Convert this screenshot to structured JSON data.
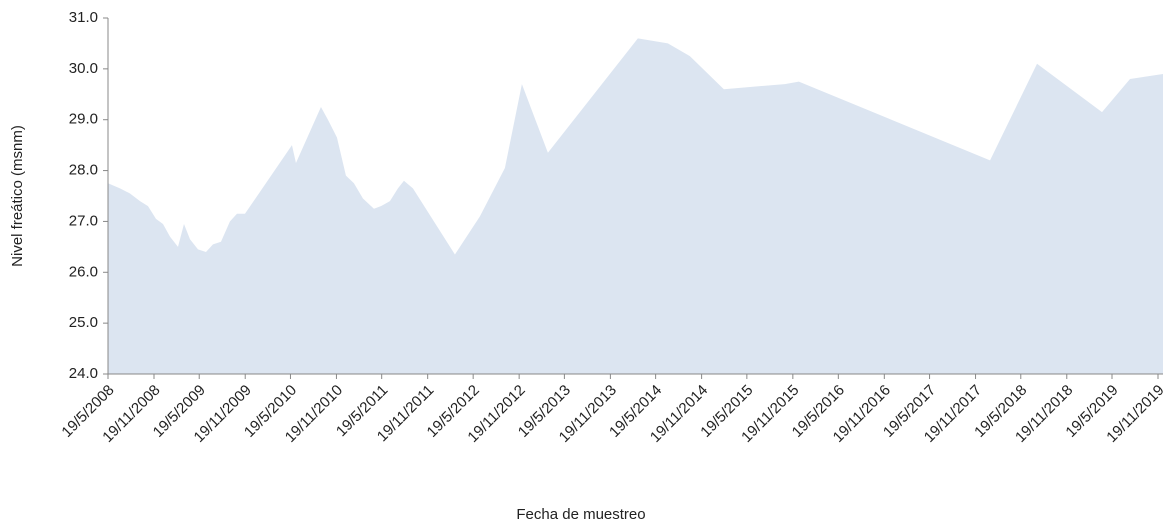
{
  "chart_data": {
    "type": "area",
    "x_label": "Fecha de muestreo",
    "y_label": "Nivel freático (msnm)",
    "color": "#dce5f1",
    "x": [
      "2008-05-19",
      "2008-07-06",
      "2008-08-15",
      "2008-09-24",
      "2008-10-26",
      "2008-11-27",
      "2008-12-25",
      "2009-01-22",
      "2009-02-23",
      "2009-03-19",
      "2009-04-12",
      "2009-05-14",
      "2009-06-15",
      "2009-07-13",
      "2009-08-14",
      "2009-09-19",
      "2009-10-17",
      "2009-11-18",
      "2010-05-25",
      "2010-06-10",
      "2010-09-18",
      "2010-10-16",
      "2010-11-21",
      "2010-12-27",
      "2011-01-28",
      "2011-03-05",
      "2011-04-18",
      "2011-05-16",
      "2011-06-21",
      "2011-07-23",
      "2011-08-16",
      "2011-09-21",
      "2012-03-07",
      "2012-06-15",
      "2012-09-23",
      "2012-11-30",
      "2013-03-14",
      "2014-03-09",
      "2014-07-07",
      "2014-10-03",
      "2015-02-16",
      "2015-10-18",
      "2015-12-13",
      "2018-01-16",
      "2018-07-23",
      "2019-04-09",
      "2019-07-30",
      "2019-12-09"
    ],
    "values": [
      27.75,
      27.65,
      27.55,
      27.4,
      27.3,
      27.05,
      26.95,
      26.7,
      26.5,
      26.95,
      26.65,
      26.45,
      26.4,
      26.55,
      26.6,
      27.0,
      27.15,
      27.15,
      28.5,
      28.15,
      29.25,
      29.0,
      28.65,
      27.9,
      27.75,
      27.45,
      27.25,
      27.3,
      27.4,
      27.65,
      27.8,
      27.65,
      26.35,
      27.1,
      28.05,
      29.7,
      28.35,
      30.6,
      30.5,
      30.25,
      29.6,
      29.7,
      29.75,
      28.2,
      30.1,
      29.15,
      29.8,
      29.9
    ],
    "xlim": [
      "2008-05-19",
      "2019-12-09"
    ],
    "xticks": [
      {
        "value": "2008-05-19",
        "label": "19/5/2008"
      },
      {
        "value": "2008-11-19",
        "label": "19/11/2008"
      },
      {
        "value": "2009-05-19",
        "label": "19/5/2009"
      },
      {
        "value": "2009-11-19",
        "label": "19/11/2009"
      },
      {
        "value": "2010-05-19",
        "label": "19/5/2010"
      },
      {
        "value": "2010-11-19",
        "label": "19/11/2010"
      },
      {
        "value": "2011-05-19",
        "label": "19/5/2011"
      },
      {
        "value": "2011-11-19",
        "label": "19/11/2011"
      },
      {
        "value": "2012-05-19",
        "label": "19/5/2012"
      },
      {
        "value": "2012-11-19",
        "label": "19/11/2012"
      },
      {
        "value": "2013-05-19",
        "label": "19/5/2013"
      },
      {
        "value": "2013-11-19",
        "label": "19/11/2013"
      },
      {
        "value": "2014-05-19",
        "label": "19/5/2014"
      },
      {
        "value": "2014-11-19",
        "label": "19/11/2014"
      },
      {
        "value": "2015-05-19",
        "label": "19/5/2015"
      },
      {
        "value": "2015-11-19",
        "label": "19/11/2015"
      },
      {
        "value": "2016-05-19",
        "label": "19/5/2016"
      },
      {
        "value": "2016-11-19",
        "label": "19/11/2016"
      },
      {
        "value": "2017-05-19",
        "label": "19/5/2017"
      },
      {
        "value": "2017-11-19",
        "label": "19/11/2017"
      },
      {
        "value": "2018-05-19",
        "label": "19/5/2018"
      },
      {
        "value": "2018-11-19",
        "label": "19/11/2018"
      },
      {
        "value": "2019-05-19",
        "label": "19/5/2019"
      },
      {
        "value": "2019-11-19",
        "label": "19/11/2019"
      }
    ],
    "ylim": [
      24,
      31
    ],
    "yticks": [
      {
        "value": 24,
        "label": "24.0"
      },
      {
        "value": 25,
        "label": "25.0"
      },
      {
        "value": 26,
        "label": "26.0"
      },
      {
        "value": 27,
        "label": "27.0"
      },
      {
        "value": 28,
        "label": "28.0"
      },
      {
        "value": 29,
        "label": "29.0"
      },
      {
        "value": 30,
        "label": "30.0"
      },
      {
        "value": 31,
        "label": "31.0"
      }
    ]
  }
}
